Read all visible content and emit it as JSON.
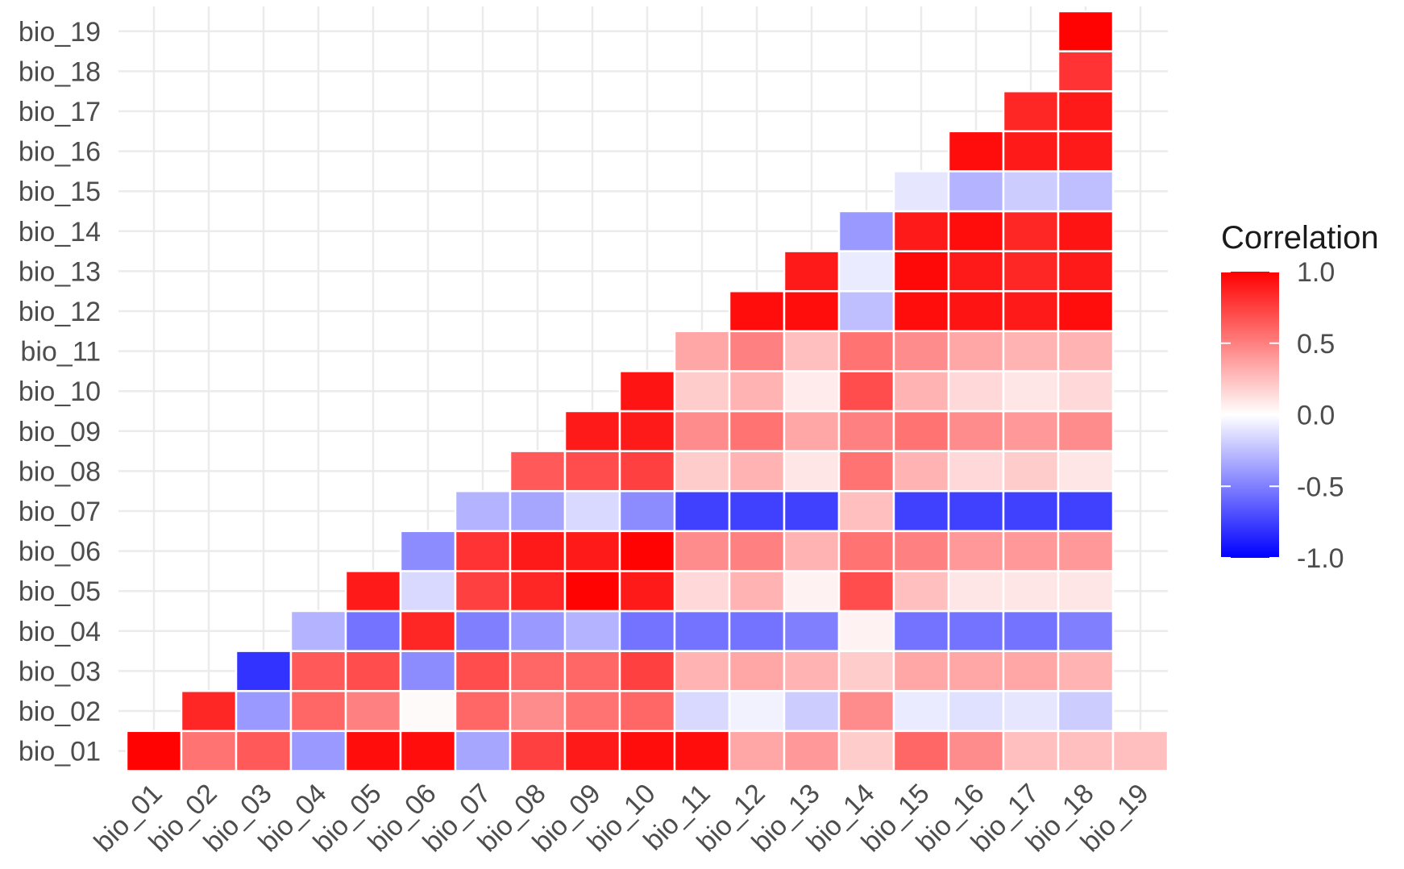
{
  "chart_data": {
    "type": "heatmap",
    "title": "",
    "xlabel": "",
    "ylabel": "",
    "variables": [
      "bio_01",
      "bio_02",
      "bio_03",
      "bio_04",
      "bio_05",
      "bio_06",
      "bio_07",
      "bio_08",
      "bio_09",
      "bio_10",
      "bio_11",
      "bio_12",
      "bio_13",
      "bio_14",
      "bio_15",
      "bio_16",
      "bio_17",
      "bio_18",
      "bio_19"
    ],
    "layout_note": "lower-triangle: row i (y) includes columns 0..i excluded; cell (x=j, y=i) shown for j >= i",
    "rows": {
      "bio_01": [
        0.99,
        0.55,
        0.65,
        -0.4,
        0.95,
        0.95,
        -0.35,
        0.75,
        0.9,
        0.95,
        0.95,
        0.35,
        0.4,
        0.2,
        0.6,
        0.45,
        0.25,
        0.25,
        0.25
      ],
      "bio_02": [
        null,
        0.85,
        -0.4,
        0.6,
        0.5,
        0.02,
        0.6,
        0.45,
        0.55,
        0.6,
        -0.15,
        -0.05,
        -0.2,
        0.45,
        -0.08,
        -0.12,
        -0.1,
        -0.2
      ],
      "bio_03": [
        null,
        null,
        -0.8,
        0.65,
        0.7,
        -0.45,
        0.7,
        0.6,
        0.6,
        0.75,
        0.3,
        0.35,
        0.3,
        0.2,
        0.35,
        0.35,
        0.35,
        0.3
      ],
      "bio_04": [
        null,
        null,
        null,
        -0.3,
        -0.55,
        0.85,
        -0.5,
        -0.4,
        -0.3,
        -0.55,
        -0.55,
        -0.55,
        -0.5,
        0.05,
        -0.55,
        -0.55,
        -0.55,
        -0.5
      ],
      "bio_05": [
        null,
        null,
        null,
        null,
        0.9,
        -0.15,
        0.75,
        0.85,
        0.99,
        0.9,
        0.15,
        0.3,
        0.05,
        0.7,
        0.25,
        0.1,
        0.1,
        0.1
      ],
      "bio_06": [
        null,
        null,
        null,
        null,
        null,
        -0.45,
        0.8,
        0.9,
        0.9,
        0.99,
        0.45,
        0.5,
        0.3,
        0.55,
        0.5,
        0.4,
        0.4,
        0.4
      ],
      "bio_07": [
        null,
        null,
        null,
        null,
        null,
        null,
        -0.3,
        -0.35,
        -0.15,
        -0.45,
        -0.75,
        -0.75,
        -0.75,
        0.25,
        -0.75,
        -0.75,
        -0.75,
        -0.75
      ],
      "bio_08": [
        null,
        null,
        null,
        null,
        null,
        null,
        null,
        0.65,
        0.7,
        0.75,
        0.2,
        0.3,
        0.1,
        0.55,
        0.3,
        0.15,
        0.2,
        0.1
      ],
      "bio_09": [
        null,
        null,
        null,
        null,
        null,
        null,
        null,
        null,
        0.9,
        0.9,
        0.45,
        0.55,
        0.35,
        0.5,
        0.55,
        0.45,
        0.4,
        0.45
      ],
      "bio_10": [
        null,
        null,
        null,
        null,
        null,
        null,
        null,
        null,
        null,
        0.92,
        0.2,
        0.3,
        0.08,
        0.7,
        0.3,
        0.15,
        0.1,
        0.15
      ],
      "bio_11": [
        null,
        null,
        null,
        null,
        null,
        null,
        null,
        null,
        null,
        null,
        0.35,
        0.5,
        0.25,
        0.55,
        0.45,
        0.35,
        0.3,
        0.3
      ],
      "bio_12": [
        null,
        null,
        null,
        null,
        null,
        null,
        null,
        null,
        null,
        null,
        null,
        0.95,
        0.95,
        -0.25,
        0.95,
        0.92,
        0.9,
        0.95
      ],
      "bio_13": [
        null,
        null,
        null,
        null,
        null,
        null,
        null,
        null,
        null,
        null,
        null,
        null,
        0.9,
        -0.08,
        0.97,
        0.9,
        0.85,
        0.9
      ],
      "bio_14": [
        null,
        null,
        null,
        null,
        null,
        null,
        null,
        null,
        null,
        null,
        null,
        null,
        null,
        -0.4,
        0.9,
        0.95,
        0.85,
        0.92
      ],
      "bio_15": [
        null,
        null,
        null,
        null,
        null,
        null,
        null,
        null,
        null,
        null,
        null,
        null,
        null,
        null,
        -0.1,
        -0.3,
        -0.2,
        -0.25
      ],
      "bio_16": [
        null,
        null,
        null,
        null,
        null,
        null,
        null,
        null,
        null,
        null,
        null,
        null,
        null,
        null,
        null,
        0.95,
        0.9,
        0.9
      ],
      "bio_17": [
        null,
        null,
        null,
        null,
        null,
        null,
        null,
        null,
        null,
        null,
        null,
        null,
        null,
        null,
        null,
        null,
        0.85,
        0.9
      ],
      "bio_18": [
        null,
        null,
        null,
        null,
        null,
        null,
        null,
        null,
        null,
        null,
        null,
        null,
        null,
        null,
        null,
        null,
        null,
        0.8
      ],
      "bio_19": [
        null,
        null,
        null,
        null,
        null,
        null,
        null,
        null,
        null,
        null,
        null,
        null,
        null,
        null,
        null,
        null,
        null,
        0.99
      ]
    },
    "legend": {
      "title": "Correlation",
      "ticks": [
        "1.0",
        "0.5",
        "0.0",
        "-0.5",
        "-1.0"
      ],
      "tick_values": [
        1.0,
        0.5,
        0.0,
        -0.5,
        -1.0
      ],
      "colors": {
        "low": "#0000ff",
        "mid": "#ffffff",
        "high": "#ff0000"
      }
    },
    "grid": true,
    "legend_position": "right"
  }
}
